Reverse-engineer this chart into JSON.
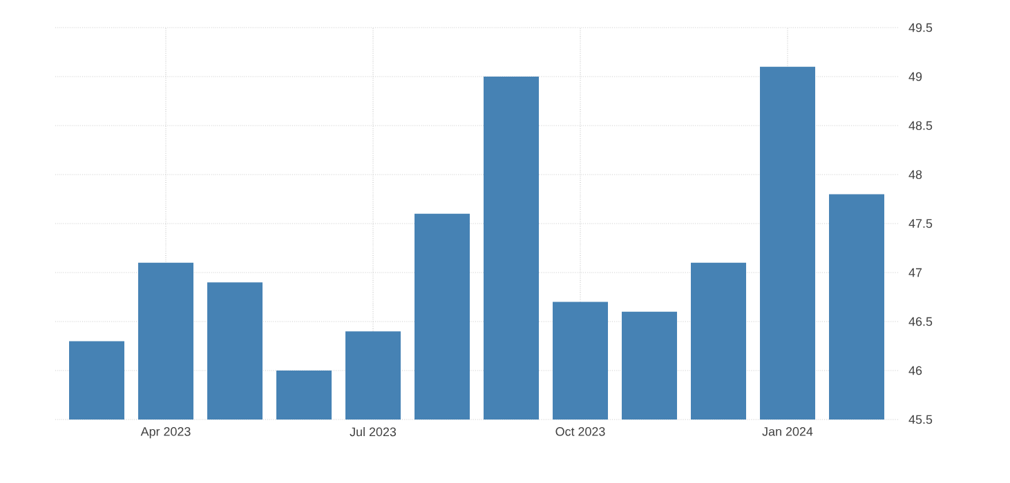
{
  "chart_data": {
    "type": "bar",
    "categories": [
      null,
      "Apr 2023",
      null,
      null,
      "Jul 2023",
      null,
      null,
      "Oct 2023",
      null,
      null,
      "Jan 2024",
      null
    ],
    "values": [
      46.3,
      47.1,
      46.9,
      46.0,
      46.4,
      47.6,
      49.0,
      46.7,
      46.6,
      47.1,
      49.1,
      47.8
    ],
    "color": "#4682b4",
    "ylim": [
      45.5,
      49.5
    ],
    "yticks": [
      45.5,
      46,
      46.5,
      47,
      47.5,
      48,
      48.5,
      49,
      49.5
    ],
    "grid": true
  }
}
